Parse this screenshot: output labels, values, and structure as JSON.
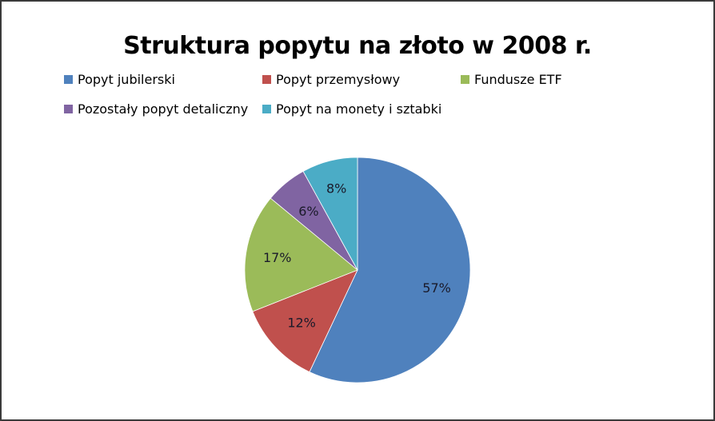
{
  "chart_data": {
    "type": "pie",
    "title": "Struktura popytu na złoto w 2008 r.",
    "categories": [
      "Popyt jubilerski",
      "Popyt przemysłowy",
      "Fundusze ETF",
      "Pozostały popyt detaliczny",
      "Popyt na monety i sztabki"
    ],
    "values": [
      57,
      12,
      17,
      6,
      8
    ],
    "data_labels": [
      "57%",
      "12%",
      "17%",
      "6%",
      "8%"
    ],
    "colors": [
      "#4F81BD",
      "#C0504D",
      "#9BBB59",
      "#8064A2",
      "#4BACC6"
    ],
    "legend_position": "top"
  },
  "legend": [
    {
      "label": "Popyt jubilerski",
      "color": "#4F81BD"
    },
    {
      "label": "Popyt przemysłowy",
      "color": "#C0504D"
    },
    {
      "label": "Fundusze ETF",
      "color": "#9BBB59"
    },
    {
      "label": "Pozostały popyt detaliczny",
      "color": "#8064A2"
    },
    {
      "label": "Popyt na monety i sztabki",
      "color": "#4BACC6"
    }
  ]
}
